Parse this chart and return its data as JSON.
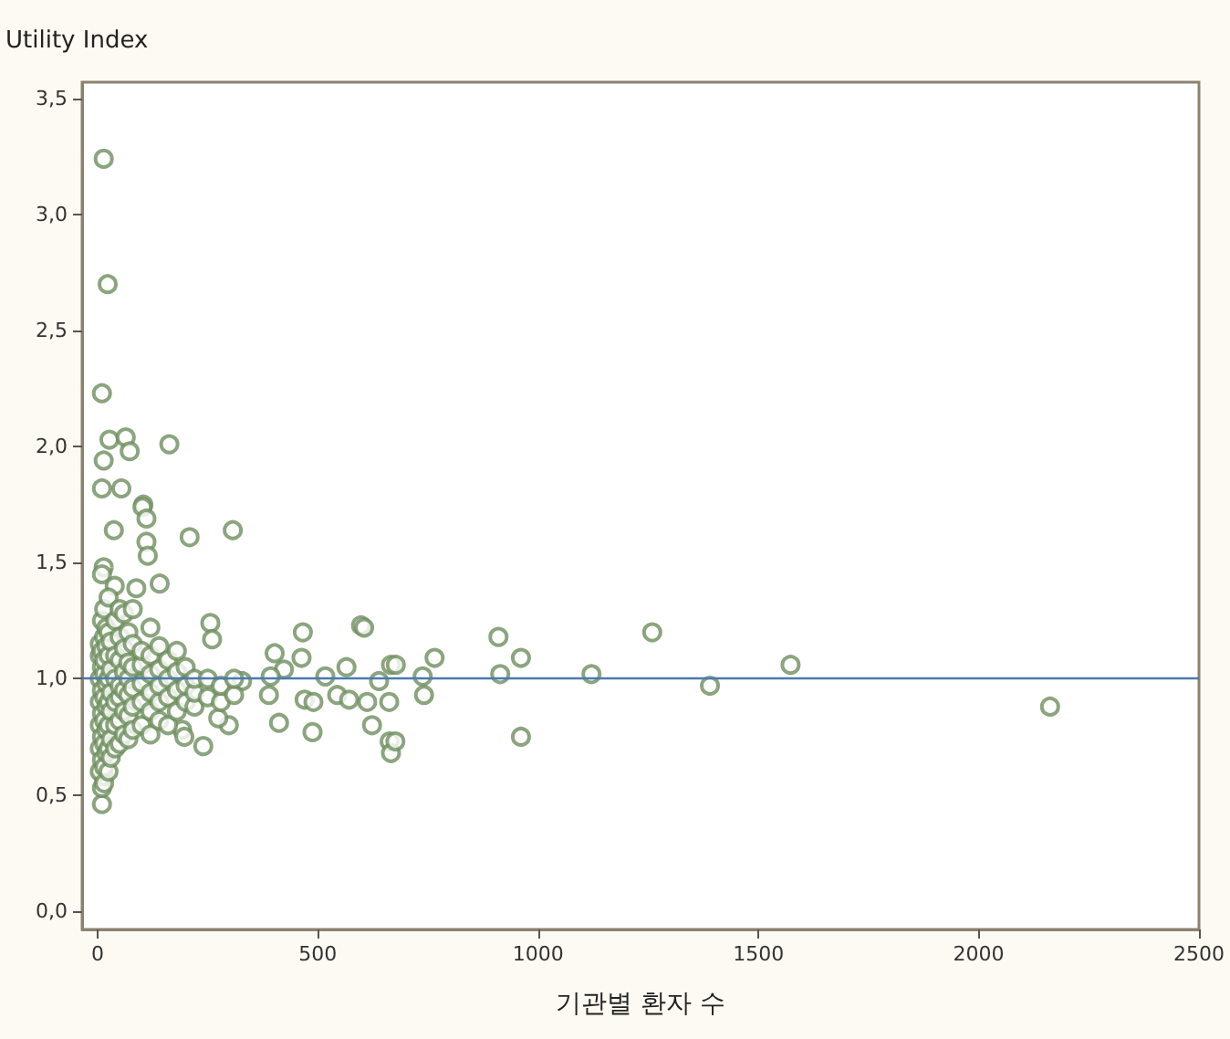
{
  "chart_data": {
    "type": "scatter",
    "xlabel": "기관별 환자 수",
    "ylabel": "Utility Index",
    "xlim": [
      -35,
      2500
    ],
    "xticks": [
      0,
      500,
      1000,
      1500,
      2000,
      2500
    ],
    "ylim": [
      -0.08,
      3.57
    ],
    "yticks": [
      {
        "value": 0,
        "label": "0,0"
      },
      {
        "value": 0.5,
        "label": "0,5"
      },
      {
        "value": 1,
        "label": "1,0"
      },
      {
        "value": 1.5,
        "label": "1,5"
      },
      {
        "value": 2,
        "label": "2,0"
      },
      {
        "value": 2.5,
        "label": "2,5"
      },
      {
        "value": 3,
        "label": "3,0"
      },
      {
        "value": 3.5,
        "label": "3,5"
      }
    ],
    "grid": false,
    "marker": "circle",
    "ref_lines": [
      {
        "axis": "y",
        "value": 1,
        "color": "#4a7ab0"
      }
    ],
    "series": [
      {
        "color": "#6e8f5e",
        "x": [
          14,
          23,
          10,
          27,
          64,
          73,
          14,
          163,
          10,
          54,
          104,
          102,
          111,
          37,
          209,
          307,
          111,
          114,
          14,
          10,
          39,
          88,
          141,
          256,
          260,
          466,
          598,
          402,
          463,
          423,
          393,
          517,
          565,
          666,
          639,
          328,
          389,
          470,
          490,
          544,
          571,
          612,
          662,
          412,
          488,
          623,
          663,
          666,
          298,
          240,
          274,
          192,
          197,
          10,
          10,
          14,
          605,
          910,
          961,
          914,
          1259,
          1121,
          1390,
          1573,
          2162,
          961,
          677,
          765,
          738,
          741,
          676,
          5,
          5,
          5,
          5,
          5,
          5,
          5,
          10,
          10,
          10,
          10,
          10,
          10,
          10,
          15,
          15,
          15,
          15,
          15,
          15,
          15,
          15,
          15,
          20,
          20,
          20,
          20,
          20,
          20,
          25,
          25,
          25,
          25,
          25,
          25,
          25,
          25,
          30,
          30,
          30,
          30,
          30,
          30,
          40,
          40,
          40,
          40,
          40,
          40,
          50,
          50,
          50,
          50,
          50,
          50,
          50,
          60,
          60,
          60,
          60,
          60,
          60,
          70,
          70,
          70,
          70,
          70,
          70,
          80,
          80,
          80,
          80,
          80,
          80,
          100,
          100,
          100,
          100,
          100,
          120,
          120,
          120,
          120,
          120,
          120,
          140,
          140,
          140,
          140,
          140,
          160,
          160,
          160,
          160,
          180,
          180,
          180,
          180,
          200,
          200,
          200,
          220,
          220,
          220,
          250,
          250,
          280,
          280,
          310,
          310
        ],
        "values": [
          3.24,
          2.7,
          2.23,
          2.03,
          2.04,
          1.98,
          1.94,
          2.01,
          1.82,
          1.82,
          1.75,
          1.74,
          1.69,
          1.64,
          1.61,
          1.64,
          1.59,
          1.53,
          1.48,
          1.45,
          1.4,
          1.39,
          1.41,
          1.24,
          1.17,
          1.2,
          1.23,
          1.11,
          1.09,
          1.04,
          1.01,
          1.01,
          1.05,
          1.06,
          0.99,
          0.99,
          0.93,
          0.91,
          0.9,
          0.93,
          0.91,
          0.9,
          0.9,
          0.81,
          0.77,
          0.8,
          0.73,
          0.68,
          0.8,
          0.71,
          0.83,
          0.78,
          0.75,
          0.46,
          0.53,
          0.58,
          1.22,
          1.18,
          1.09,
          1.02,
          1.2,
          1.02,
          0.97,
          1.06,
          0.88,
          0.75,
          1.06,
          1.09,
          1.01,
          0.93,
          0.73,
          0.6,
          0.7,
          0.8,
          0.9,
          1.0,
          1.1,
          1.15,
          0.65,
          0.75,
          0.85,
          0.95,
          1.05,
          1.12,
          1.25,
          0.55,
          0.62,
          0.72,
          0.82,
          0.92,
          1.02,
          1.08,
          1.18,
          1.3,
          0.68,
          0.78,
          0.88,
          0.98,
          1.14,
          1.22,
          0.6,
          0.7,
          0.8,
          0.9,
          1.0,
          1.1,
          1.2,
          1.35,
          0.66,
          0.74,
          0.86,
          0.94,
          1.04,
          1.16,
          0.7,
          0.8,
          0.9,
          1.0,
          1.1,
          1.25,
          0.72,
          0.82,
          0.92,
          0.97,
          1.08,
          1.18,
          1.3,
          0.76,
          0.86,
          0.95,
          1.03,
          1.13,
          1.28,
          0.74,
          0.84,
          0.93,
          1.0,
          1.07,
          1.2,
          0.78,
          0.88,
          0.96,
          1.05,
          1.15,
          1.3,
          0.8,
          0.9,
          0.98,
          1.06,
          1.12,
          0.76,
          0.86,
          0.94,
          1.02,
          1.1,
          1.22,
          0.82,
          0.9,
          0.97,
          1.04,
          1.14,
          0.8,
          0.92,
          1.0,
          1.08,
          0.86,
          0.95,
          1.03,
          1.12,
          0.9,
          0.97,
          1.05,
          0.88,
          0.94,
          1.0,
          0.92,
          1.0,
          0.9,
          0.97,
          0.93,
          1.0
        ]
      }
    ]
  }
}
